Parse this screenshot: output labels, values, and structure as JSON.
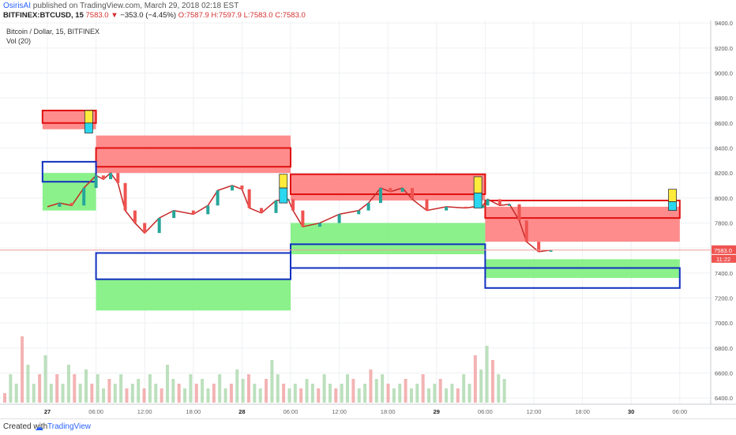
{
  "header": {
    "author": "OsirisAI",
    "published": "published on TradingView.com, March 29, 2018 02:18 EST",
    "symbol": "BITFINEX:BTCUSD, 15",
    "last": "7583.0",
    "change": "−353.0 (−4.45%)",
    "ohlc": "O:7587.9 H:7597.9 L:7583.0 C:7583.0"
  },
  "legend": {
    "instrument": "Bitcoin / Dollar, 15, BITFINEX",
    "volume": "Vol (20)"
  },
  "footer": {
    "created": "Created with",
    "brand": "TradingView"
  },
  "colors": {
    "up": "#26a69a",
    "down": "#ef5350",
    "supply_zone": "#ff7f7f",
    "demand_zone": "#7ef07e",
    "level_red": "#e01010",
    "level_blue": "#1030c0",
    "marker_yellow": "#ffeb3b",
    "marker_cyan": "#29d8f0"
  },
  "chart_data": {
    "type": "candlestick",
    "title": "",
    "ylim": [
      6350,
      9420
    ],
    "y_ticks": [
      "9400.0",
      "9200.0",
      "9000.0",
      "8800.0",
      "8600.0",
      "8400.0",
      "8200.0",
      "8000.0",
      "7800.0",
      "7600.0",
      "7400.0",
      "7200.0",
      "7000.0",
      "6800.0",
      "6600.0",
      "6400.0"
    ],
    "x_ticks": [
      "27",
      "06:00",
      "12:00",
      "18:00",
      "28",
      "06:00",
      "12:00",
      "18:00",
      "29",
      "06:00",
      "12:00",
      "18:00",
      "30",
      "06:00"
    ],
    "last_price_label": "7583.0",
    "countdown_label": "11:22",
    "price_path": [
      [
        0.0,
        7930
      ],
      [
        0.25,
        7960
      ],
      [
        0.5,
        7940
      ],
      [
        0.75,
        8080
      ],
      [
        1.0,
        8180
      ],
      [
        1.15,
        8150
      ],
      [
        1.3,
        8200
      ],
      [
        1.45,
        8120
      ],
      [
        1.6,
        7900
      ],
      [
        1.8,
        7800
      ],
      [
        2.0,
        7720
      ],
      [
        2.3,
        7840
      ],
      [
        2.6,
        7900
      ],
      [
        3.0,
        7870
      ],
      [
        3.3,
        7940
      ],
      [
        3.5,
        8060
      ],
      [
        3.8,
        8100
      ],
      [
        4.0,
        8070
      ],
      [
        4.15,
        7920
      ],
      [
        4.4,
        7880
      ],
      [
        4.7,
        7980
      ],
      [
        4.95,
        7990
      ],
      [
        5.05,
        7900
      ],
      [
        5.25,
        7770
      ],
      [
        5.6,
        7800
      ],
      [
        6.0,
        7870
      ],
      [
        6.4,
        7900
      ],
      [
        6.6,
        7960
      ],
      [
        6.85,
        8080
      ],
      [
        7.05,
        8050
      ],
      [
        7.3,
        8080
      ],
      [
        7.5,
        7990
      ],
      [
        7.8,
        7900
      ],
      [
        8.2,
        7930
      ],
      [
        8.6,
        7920
      ],
      [
        8.95,
        7940
      ],
      [
        9.05,
        7990
      ],
      [
        9.3,
        7940
      ],
      [
        9.5,
        7950
      ],
      [
        9.7,
        7820
      ],
      [
        9.85,
        7650
      ],
      [
        10.1,
        7570
      ],
      [
        10.35,
        7583
      ]
    ],
    "volume_series": [
      0.1,
      0.3,
      0.2,
      0.7,
      0.4,
      0.2,
      0.3,
      0.5,
      0.2,
      0.3,
      0.2,
      0.4,
      0.3,
      0.2,
      0.35,
      0.2,
      0.3,
      0.15,
      0.25,
      0.2,
      0.3,
      0.15,
      0.2,
      0.25,
      0.15,
      0.3,
      0.2,
      0.15,
      0.4,
      0.25,
      0.2,
      0.15,
      0.3,
      0.2,
      0.25,
      0.15,
      0.2,
      0.3,
      0.15,
      0.2,
      0.35,
      0.25,
      0.3,
      0.2,
      0.15,
      0.25,
      0.45,
      0.3,
      0.2,
      0.15,
      0.2,
      0.15,
      0.25,
      0.2,
      0.15,
      0.3,
      0.2,
      0.15,
      0.2,
      0.3,
      0.25,
      0.15,
      0.2,
      0.35,
      0.25,
      0.3,
      0.2,
      0.15,
      0.2,
      0.25,
      0.15,
      0.2,
      0.3,
      0.15,
      0.2,
      0.25,
      0.15,
      0.2,
      0.15,
      0.3,
      0.2,
      0.5,
      0.35,
      0.6,
      0.45,
      0.3,
      0.25
    ],
    "zones": [
      {
        "kind": "supply",
        "x0": -0.1,
        "x1": 1.0,
        "y0": 8550,
        "y1": 8700
      },
      {
        "kind": "supply",
        "x0": 1.0,
        "x1": 5.0,
        "y0": 8200,
        "y1": 8500
      },
      {
        "kind": "supply",
        "x0": 5.0,
        "x1": 9.0,
        "y0": 7980,
        "y1": 8190
      },
      {
        "kind": "supply",
        "x0": 9.0,
        "x1": 13.0,
        "y0": 7650,
        "y1": 7930
      },
      {
        "kind": "demand",
        "x0": -0.1,
        "x1": 1.0,
        "y0": 7900,
        "y1": 8200
      },
      {
        "kind": "demand",
        "x0": 1.0,
        "x1": 5.0,
        "y0": 7100,
        "y1": 7350
      },
      {
        "kind": "demand",
        "x0": 5.0,
        "x1": 9.0,
        "y0": 7550,
        "y1": 7800
      },
      {
        "kind": "demand",
        "x0": 9.0,
        "x1": 13.0,
        "y0": 7360,
        "y1": 7510
      }
    ],
    "red_boxes": [
      {
        "x0": -0.1,
        "x1": 1.0,
        "y0": 8600,
        "y1": 8700
      },
      {
        "x0": 1.0,
        "x1": 5.0,
        "y0": 8250,
        "y1": 8400
      },
      {
        "x0": 5.0,
        "x1": 9.0,
        "y0": 8030,
        "y1": 8190
      },
      {
        "x0": 9.0,
        "x1": 13.0,
        "y0": 7840,
        "y1": 7980
      }
    ],
    "blue_boxes": [
      {
        "x0": -0.1,
        "x1": 1.0,
        "y0": 8130,
        "y1": 8290
      },
      {
        "x0": 1.0,
        "x1": 5.0,
        "y0": 7350,
        "y1": 7560
      },
      {
        "x0": 5.0,
        "x1": 9.0,
        "y0": 7440,
        "y1": 7630
      },
      {
        "x0": 9.0,
        "x1": 13.0,
        "y0": 7280,
        "y1": 7440
      }
    ],
    "markers": [
      {
        "x": 0.85,
        "y_top": 8700,
        "y_mid": 8600,
        "y_bot": 8520
      },
      {
        "x": 4.85,
        "y_top": 8190,
        "y_mid": 8080,
        "y_bot": 7960
      },
      {
        "x": 8.85,
        "y_top": 8170,
        "y_mid": 8040,
        "y_bot": 7920
      },
      {
        "x": 12.85,
        "y_top": 8070,
        "y_mid": 7970,
        "y_bot": 7900
      }
    ]
  }
}
